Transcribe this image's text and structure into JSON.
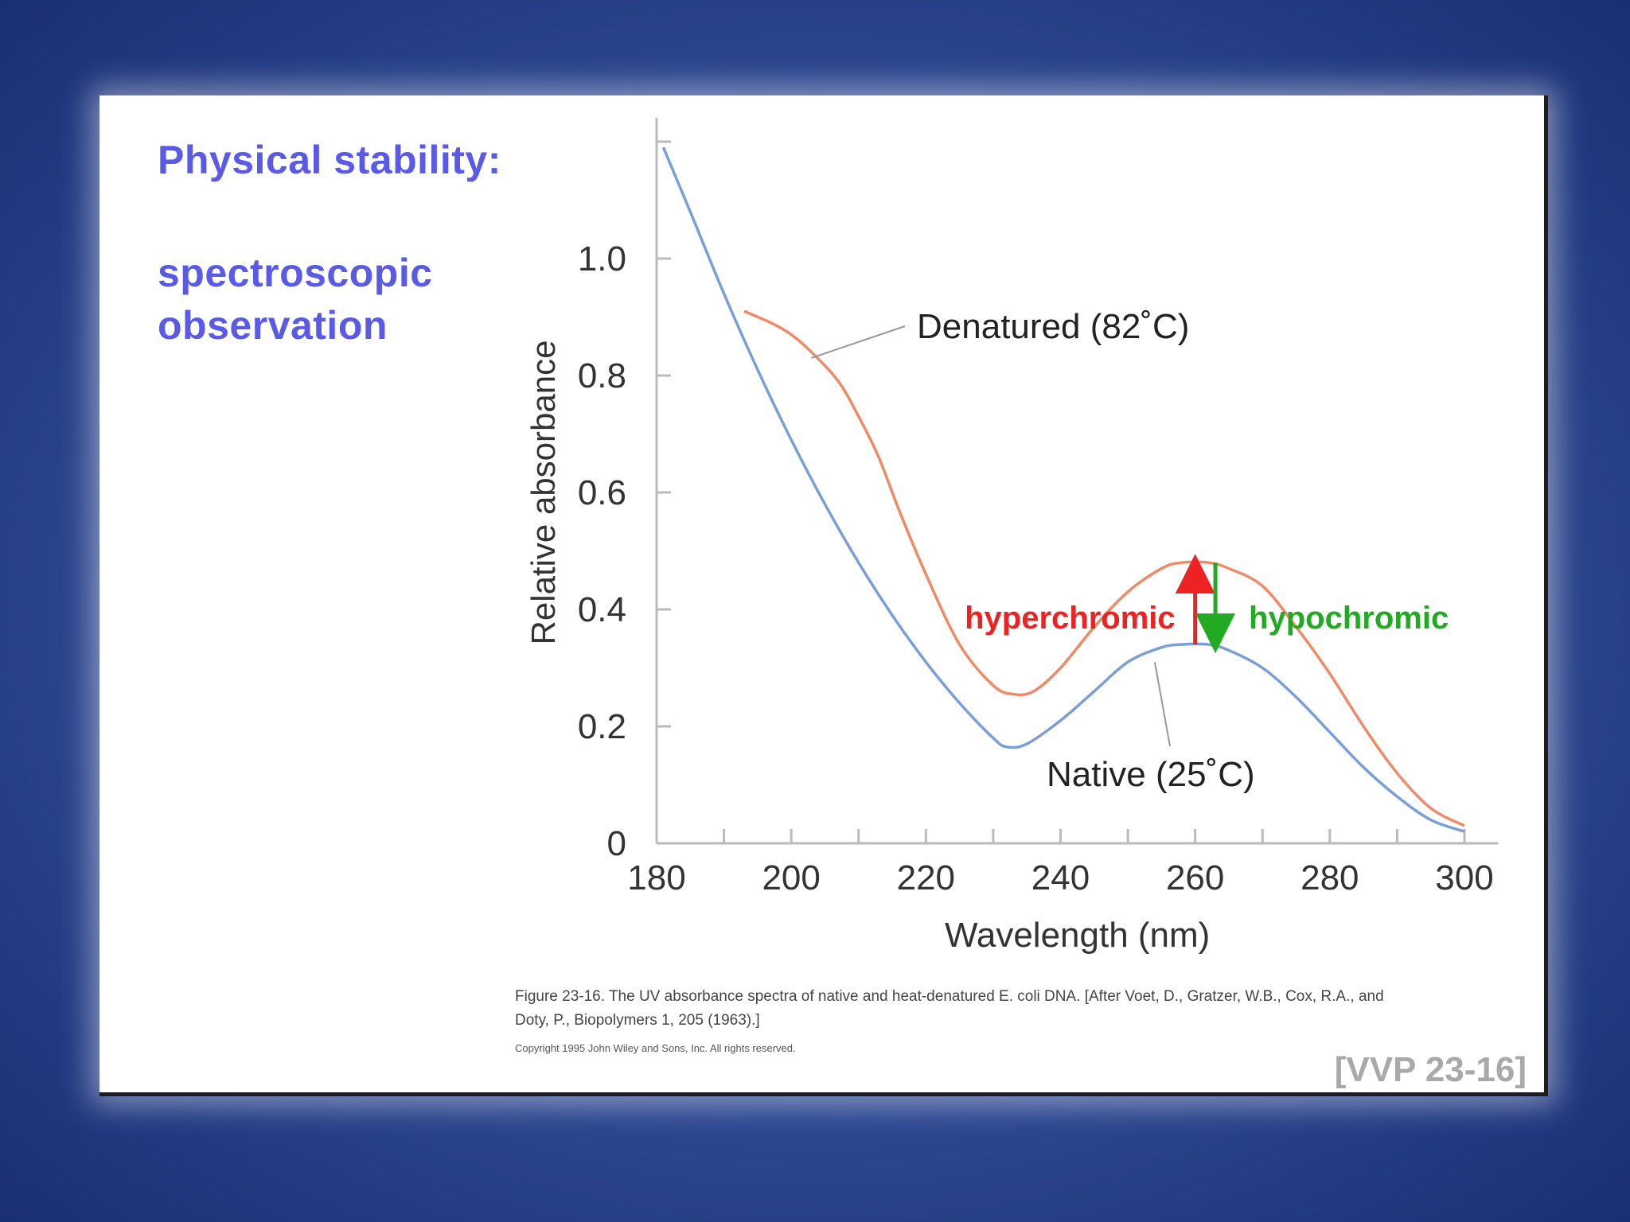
{
  "slide": {
    "title": "Physical stability:",
    "subtitle": "spectroscopic observation",
    "caption": "Figure 23-16. The UV absorbance spectra of native and heat-denatured E. coli DNA. [After Voet, D., Gratzer, W.B., Cox, R.A., and Doty, P., Biopolymers 1, 205 (1963).]",
    "copyright": "Copyright 1995 John Wiley and Sons, Inc. All rights reserved.",
    "source_ref": "[VVP 23-16]"
  },
  "chart_data": {
    "type": "line",
    "title": "",
    "xlabel": "Wavelength (nm)",
    "ylabel": "Relative absorbance",
    "xlim": [
      180,
      305
    ],
    "ylim": [
      0,
      1.2
    ],
    "x_ticks": [
      180,
      200,
      220,
      240,
      260,
      280,
      300
    ],
    "y_ticks": [
      0,
      0.2,
      0.4,
      0.6,
      0.8,
      1.0
    ],
    "y_tick_labels": [
      "0",
      "0.2",
      "0.4",
      "0.6",
      "0.8",
      "1.0"
    ],
    "grid": false,
    "series": [
      {
        "name": "Native (25˚C)",
        "color": "#7a9fd8",
        "x": [
          181,
          185,
          190,
          195,
          200,
          205,
          210,
          215,
          220,
          225,
          230,
          232,
          235,
          240,
          245,
          250,
          255,
          258,
          262,
          265,
          270,
          275,
          280,
          285,
          290,
          295,
          300
        ],
        "y": [
          1.19,
          1.08,
          0.94,
          0.81,
          0.69,
          0.58,
          0.48,
          0.39,
          0.31,
          0.24,
          0.18,
          0.165,
          0.17,
          0.21,
          0.26,
          0.31,
          0.335,
          0.34,
          0.34,
          0.33,
          0.3,
          0.25,
          0.19,
          0.13,
          0.08,
          0.04,
          0.02
        ]
      },
      {
        "name": "Denatured (82˚C)",
        "color": "#f08a68",
        "x": [
          193,
          197,
          200,
          203,
          207,
          210,
          213,
          216,
          220,
          225,
          230,
          233,
          236,
          240,
          245,
          250,
          255,
          258,
          262,
          265,
          270,
          275,
          280,
          285,
          290,
          295,
          300
        ],
        "y": [
          0.91,
          0.89,
          0.87,
          0.84,
          0.79,
          0.73,
          0.66,
          0.57,
          0.46,
          0.34,
          0.27,
          0.255,
          0.26,
          0.3,
          0.37,
          0.43,
          0.47,
          0.48,
          0.48,
          0.47,
          0.44,
          0.37,
          0.29,
          0.2,
          0.12,
          0.06,
          0.03
        ]
      }
    ],
    "annotations": [
      {
        "text": "Denatured (82˚C)",
        "color": "#222222",
        "points_to_series": 1
      },
      {
        "text": "Native (25˚C)",
        "color": "#222222",
        "points_to_series": 0
      },
      {
        "text": "hyperchromic",
        "color": "#ee2222",
        "arrow": "up",
        "x": 260,
        "from": 0.34,
        "to": 0.48
      },
      {
        "text": "hypochromic",
        "color": "#22aa22",
        "arrow": "down",
        "x": 263,
        "from": 0.48,
        "to": 0.34
      }
    ]
  }
}
